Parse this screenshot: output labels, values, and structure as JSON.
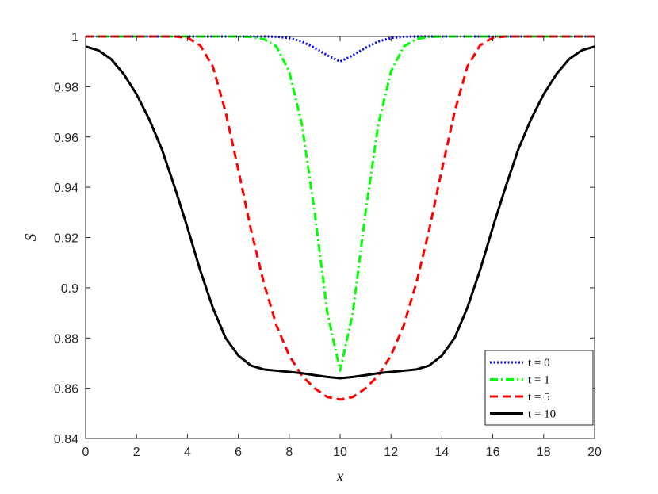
{
  "chart_data": {
    "type": "line",
    "title": "",
    "xlabel": "x",
    "ylabel": "S",
    "xlim": [
      0,
      20
    ],
    "ylim": [
      0.84,
      1.0
    ],
    "xticks": [
      "0",
      "2",
      "4",
      "6",
      "8",
      "10",
      "12",
      "14",
      "16",
      "18",
      "20"
    ],
    "yticks": [
      "0.84",
      "0.86",
      "0.88",
      "0.9",
      "0.92",
      "0.94",
      "0.96",
      "0.98",
      "1"
    ],
    "grid": false,
    "legend_position": "bottom-right",
    "x": [
      0,
      0.5,
      1,
      1.5,
      2,
      2.5,
      3,
      3.5,
      4,
      4.5,
      5,
      5.5,
      6,
      6.5,
      7,
      7.5,
      8,
      8.5,
      9,
      9.5,
      10,
      10.5,
      11,
      11.5,
      12,
      12.5,
      13,
      13.5,
      14,
      14.5,
      15,
      15.5,
      16,
      16.5,
      17,
      17.5,
      18,
      18.5,
      19,
      19.5,
      20
    ],
    "series": [
      {
        "name": "t = 0",
        "color": "#0000ff",
        "style": "dotted",
        "values": [
          1,
          1,
          1,
          1,
          1,
          1,
          1,
          1,
          1,
          1,
          1,
          1,
          1,
          1,
          1,
          0.9999,
          0.9994,
          0.998,
          0.9955,
          0.9925,
          0.99,
          0.9925,
          0.9955,
          0.998,
          0.9994,
          0.9999,
          1,
          1,
          1,
          1,
          1,
          1,
          1,
          1,
          1,
          1,
          1,
          1,
          1,
          1,
          1
        ]
      },
      {
        "name": "t = 1",
        "color": "#00ff00",
        "style": "dashdot",
        "values": [
          1,
          1,
          1,
          1,
          1,
          1,
          1,
          1,
          1,
          1,
          1,
          1,
          1,
          0.9998,
          0.999,
          0.996,
          0.986,
          0.965,
          0.93,
          0.89,
          0.867,
          0.89,
          0.93,
          0.965,
          0.986,
          0.996,
          0.999,
          0.9998,
          1,
          1,
          1,
          1,
          1,
          1,
          1,
          1,
          1,
          1,
          1,
          1,
          1
        ]
      },
      {
        "name": "t = 5",
        "color": "#ff0000",
        "style": "dashed",
        "values": [
          1,
          1,
          1,
          1,
          1,
          1,
          1,
          1,
          0.9995,
          0.9965,
          0.988,
          0.97,
          0.947,
          0.923,
          0.902,
          0.885,
          0.873,
          0.865,
          0.86,
          0.8565,
          0.8555,
          0.8565,
          0.86,
          0.865,
          0.873,
          0.885,
          0.902,
          0.923,
          0.947,
          0.97,
          0.988,
          0.9965,
          0.9995,
          1,
          1,
          1,
          1,
          1,
          1,
          1,
          1
        ]
      },
      {
        "name": "t = 10",
        "color": "#000000",
        "style": "solid",
        "values": [
          0.996,
          0.9945,
          0.991,
          0.985,
          0.977,
          0.967,
          0.955,
          0.94,
          0.924,
          0.907,
          0.892,
          0.88,
          0.873,
          0.869,
          0.8675,
          0.867,
          0.8665,
          0.866,
          0.8652,
          0.8645,
          0.864,
          0.8645,
          0.8652,
          0.866,
          0.8665,
          0.867,
          0.8675,
          0.869,
          0.873,
          0.88,
          0.892,
          0.907,
          0.924,
          0.94,
          0.955,
          0.967,
          0.977,
          0.985,
          0.991,
          0.9945,
          0.996
        ]
      }
    ]
  }
}
